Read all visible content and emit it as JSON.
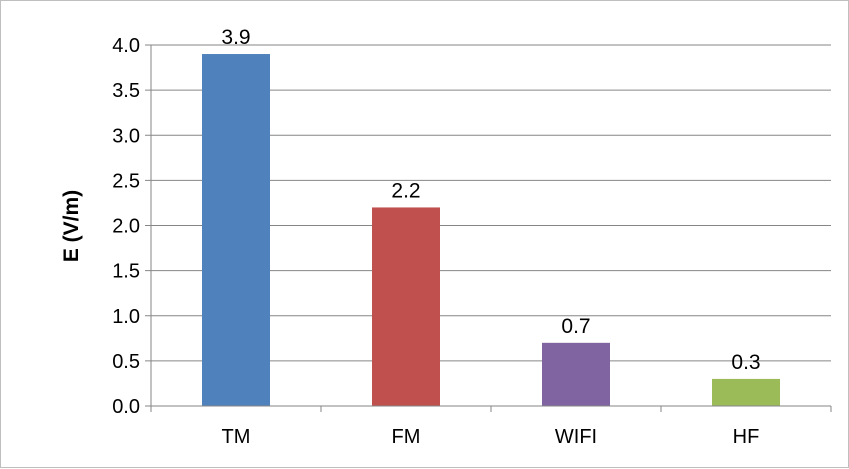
{
  "chart_data": {
    "type": "bar",
    "categories": [
      "TM",
      "FM",
      "WIFI",
      "HF"
    ],
    "values": [
      3.9,
      2.2,
      0.7,
      0.3
    ],
    "data_labels": [
      "3.9",
      "2.2",
      "0.7",
      "0.3"
    ],
    "colors": [
      "#4f81bd",
      "#c0504d",
      "#8064a2",
      "#9bbb59"
    ],
    "title": "",
    "xlabel": "",
    "ylabel": "E (V/m)",
    "ylim": [
      0,
      4.0
    ],
    "yticks": [
      "0.0",
      "0.5",
      "1.0",
      "1.5",
      "2.0",
      "2.5",
      "3.0",
      "3.5",
      "4.0"
    ],
    "grid": true,
    "legend": "none"
  }
}
